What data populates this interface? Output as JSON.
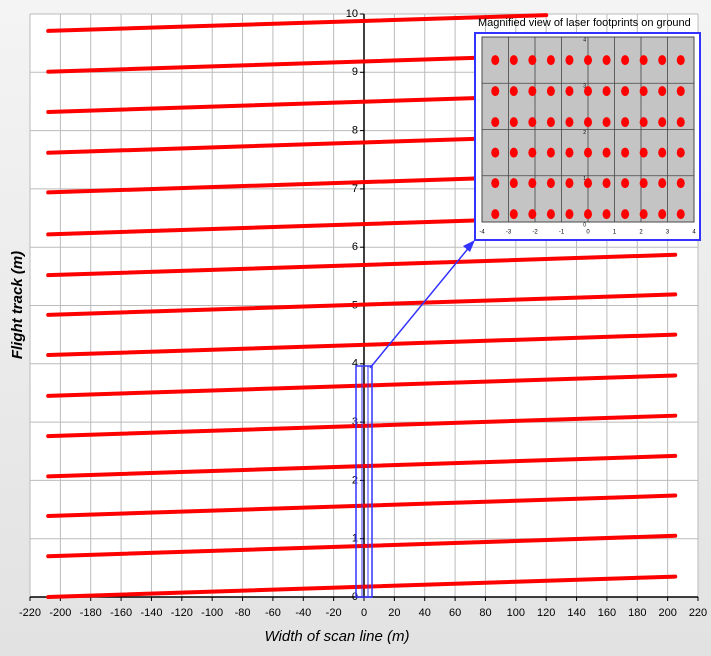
{
  "chart_data": [
    {
      "type": "line",
      "x_label": "Width of scan line (m)",
      "y_label": "Flight track (m)",
      "xlim": [
        -220,
        220
      ],
      "xticks": [
        -220,
        -200,
        -180,
        -160,
        -140,
        -120,
        -100,
        -80,
        -60,
        -40,
        -20,
        0,
        20,
        40,
        60,
        80,
        100,
        120,
        140,
        160,
        180,
        200,
        220
      ],
      "ylim": [
        0,
        10
      ],
      "yticks": [
        0,
        1,
        2,
        3,
        4,
        5,
        6,
        7,
        8,
        9,
        10
      ],
      "grid": true,
      "series": [
        {
          "color": "#ff0000",
          "x": [
            -208,
            205
          ],
          "values": [
            0,
            0.35
          ]
        },
        {
          "color": "#ff0000",
          "x": [
            -208,
            205
          ],
          "values": [
            0.7,
            1.05
          ]
        },
        {
          "color": "#ff0000",
          "x": [
            -208,
            205
          ],
          "values": [
            1.39,
            1.74
          ]
        },
        {
          "color": "#ff0000",
          "x": [
            -208,
            205
          ],
          "values": [
            2.07,
            2.42
          ]
        },
        {
          "color": "#ff0000",
          "x": [
            -208,
            205
          ],
          "values": [
            2.76,
            3.11
          ]
        },
        {
          "color": "#ff0000",
          "x": [
            -208,
            205
          ],
          "values": [
            3.45,
            3.8
          ]
        },
        {
          "color": "#ff0000",
          "x": [
            -208,
            205
          ],
          "values": [
            4.15,
            4.5
          ]
        },
        {
          "color": "#ff0000",
          "x": [
            -208,
            205
          ],
          "values": [
            4.84,
            5.19
          ]
        },
        {
          "color": "#ff0000",
          "x": [
            -208,
            205
          ],
          "values": [
            5.52,
            5.87
          ]
        },
        {
          "color": "#ff0000",
          "x": [
            -208,
            205
          ],
          "values": [
            6.22,
            6.57
          ]
        },
        {
          "color": "#ff0000",
          "x": [
            -208,
            205
          ],
          "values": [
            6.94,
            7.29
          ]
        },
        {
          "color": "#ff0000",
          "x": [
            -208,
            205
          ],
          "values": [
            7.62,
            7.97
          ]
        },
        {
          "color": "#ff0000",
          "x": [
            -208,
            205
          ],
          "values": [
            8.32,
            8.67
          ]
        },
        {
          "color": "#ff0000",
          "x": [
            -208,
            205
          ],
          "values": [
            9.01,
            9.36
          ]
        },
        {
          "color": "#ff0000",
          "x": [
            -208,
            120
          ],
          "values": [
            9.71,
            9.98
          ]
        }
      ]
    },
    {
      "type": "scatter",
      "title": "Magnified view of laser footprints on ground",
      "xlim": [
        -4,
        4
      ],
      "xticks": [
        -4,
        -3,
        -2,
        -1,
        0,
        1,
        2,
        3,
        4
      ],
      "ylim": [
        0,
        4
      ],
      "yticks": [
        0,
        1,
        2,
        3,
        4
      ],
      "grid": true,
      "color": "#ff0000",
      "x": [
        -3.5,
        -2.8,
        -2.1,
        -1.4,
        -0.7,
        0,
        0.7,
        1.4,
        2.1,
        2.8,
        3.5,
        -3.5,
        -2.8,
        -2.1,
        -1.4,
        -0.7,
        0,
        0.7,
        1.4,
        2.1,
        2.8,
        3.5,
        -3.5,
        -2.8,
        -2.1,
        -1.4,
        -0.7,
        0,
        0.7,
        1.4,
        2.1,
        2.8,
        3.5,
        -3.5,
        -2.8,
        -2.1,
        -1.4,
        -0.7,
        0,
        0.7,
        1.4,
        2.1,
        2.8,
        3.5,
        -3.5,
        -2.8,
        -2.1,
        -1.4,
        -0.7,
        0,
        0.7,
        1.4,
        2.1,
        2.8,
        3.5,
        -3.5,
        -2.8,
        -2.1,
        -1.4,
        -0.7,
        0,
        0.7,
        1.4,
        2.1,
        2.8,
        3.5
      ],
      "y": [
        3.5,
        3.5,
        3.5,
        3.5,
        3.5,
        3.5,
        3.5,
        3.5,
        3.5,
        3.5,
        3.5,
        2.83,
        2.83,
        2.83,
        2.83,
        2.83,
        2.83,
        2.83,
        2.83,
        2.83,
        2.83,
        2.83,
        2.16,
        2.16,
        2.16,
        2.16,
        2.16,
        2.16,
        2.16,
        2.16,
        2.16,
        2.16,
        2.16,
        1.5,
        1.5,
        1.5,
        1.5,
        1.5,
        1.5,
        1.5,
        1.5,
        1.5,
        1.5,
        1.5,
        0.84,
        0.84,
        0.84,
        0.84,
        0.84,
        0.84,
        0.84,
        0.84,
        0.84,
        0.84,
        0.84,
        0.17,
        0.17,
        0.17,
        0.17,
        0.17,
        0.17,
        0.17,
        0.17,
        0.17,
        0.17,
        0.17
      ]
    }
  ]
}
